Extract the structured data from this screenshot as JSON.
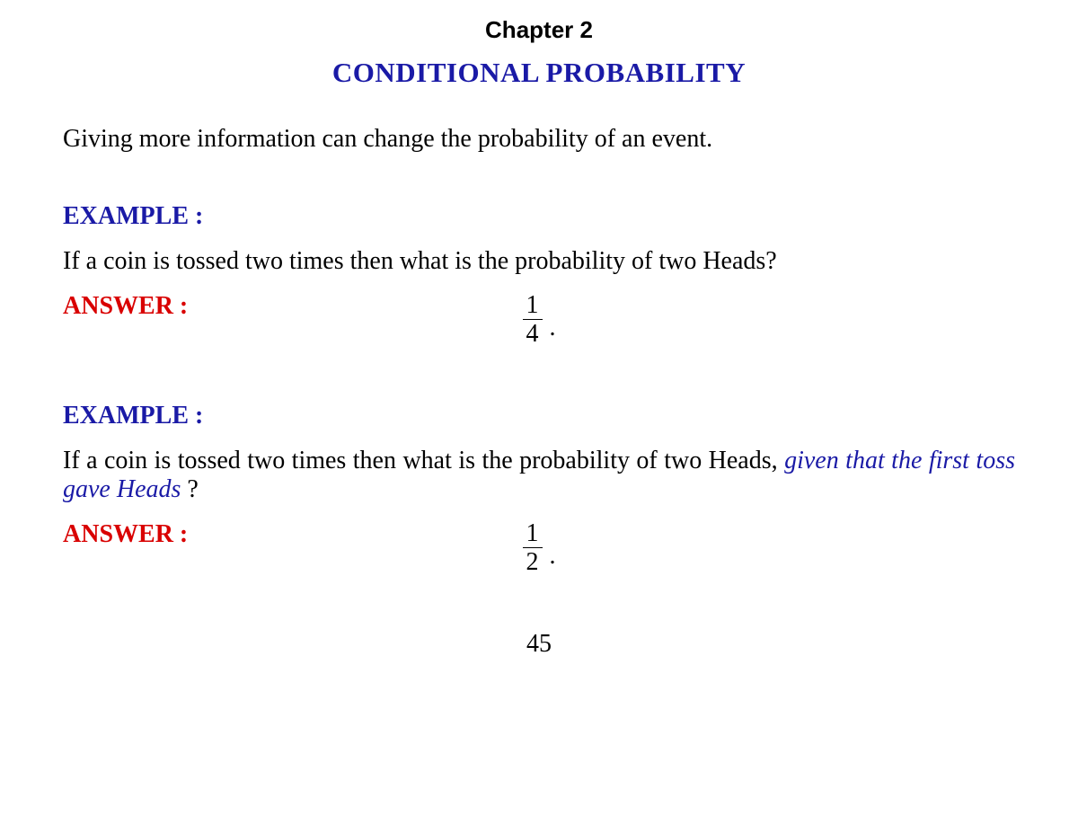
{
  "colors": {
    "blue": "#1a1aa6",
    "red": "#d90000",
    "black": "#000000",
    "background": "#ffffff"
  },
  "chapter_label": "Chapter 2",
  "title": "CONDITIONAL PROBABILITY",
  "intro": "Giving more information can change the probability of an event.",
  "example1": {
    "label": "EXAMPLE :",
    "question": "If a coin is tossed two times then what is the probability of two Heads?",
    "answer_label": "ANSWER :",
    "fraction": {
      "numerator": "1",
      "denominator": "4"
    },
    "period": "."
  },
  "example2": {
    "label": "EXAMPLE :",
    "question_prefix": "If a coin is tossed two times then what is the probability of two Heads, ",
    "question_given": "given that the first toss gave Heads",
    "question_suffix": " ?",
    "answer_label": "ANSWER :",
    "fraction": {
      "numerator": "1",
      "denominator": "2"
    },
    "period": "."
  },
  "page_number": "45",
  "typography": {
    "chapter_font": "Arial",
    "body_font": "Times New Roman",
    "chapter_fontsize": 26,
    "title_fontsize": 31,
    "body_fontsize": 28,
    "label_fontweight": 700
  }
}
